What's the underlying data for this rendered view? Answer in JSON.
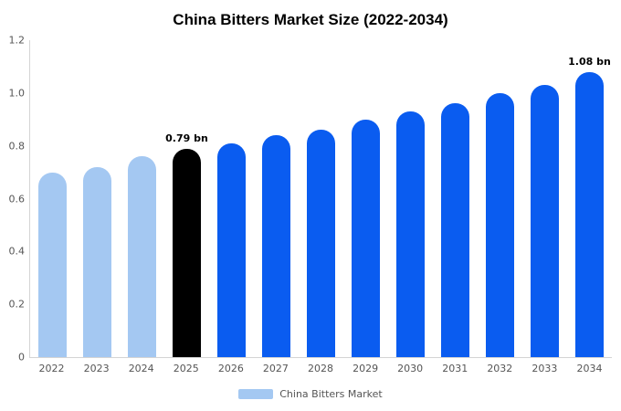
{
  "title": "China Bitters Market Size (2022-2034)",
  "legend": {
    "label": "China Bitters Market",
    "swatch_color": "#a4c8f2"
  },
  "colors": {
    "light_blue": "#a4c8f2",
    "primary_blue": "#0a5cf0",
    "highlight_black": "#000000",
    "axis_line": "#d4d4d4",
    "axis_text": "#555555"
  },
  "chart_data": {
    "type": "bar",
    "title": "China Bitters Market Size (2022-2034)",
    "xlabel": "",
    "ylabel": "",
    "categories": [
      "2022",
      "2023",
      "2024",
      "2025",
      "2026",
      "2027",
      "2028",
      "2029",
      "2030",
      "2031",
      "2032",
      "2033",
      "2034"
    ],
    "values": [
      0.7,
      0.72,
      0.76,
      0.79,
      0.81,
      0.84,
      0.86,
      0.9,
      0.93,
      0.96,
      1.0,
      1.03,
      1.08
    ],
    "bar_colors": [
      "#a4c8f2",
      "#a4c8f2",
      "#a4c8f2",
      "#000000",
      "#0a5cf0",
      "#0a5cf0",
      "#0a5cf0",
      "#0a5cf0",
      "#0a5cf0",
      "#0a5cf0",
      "#0a5cf0",
      "#0a5cf0",
      "#0a5cf0"
    ],
    "annotations": [
      {
        "index": 3,
        "text": "0.79 bn"
      },
      {
        "index": 12,
        "text": "1.08 bn"
      }
    ],
    "ylim": [
      0,
      1.2
    ],
    "yticks": [
      0,
      0.2,
      0.4,
      0.6,
      0.8,
      1.0,
      1.2
    ],
    "ytick_labels": [
      "0",
      "0.2",
      "0.4",
      "0.6",
      "0.8",
      "1.0",
      "1.2"
    ],
    "grid": false,
    "legend_position": "bottom",
    "legend_entries": [
      "China Bitters Market"
    ]
  }
}
